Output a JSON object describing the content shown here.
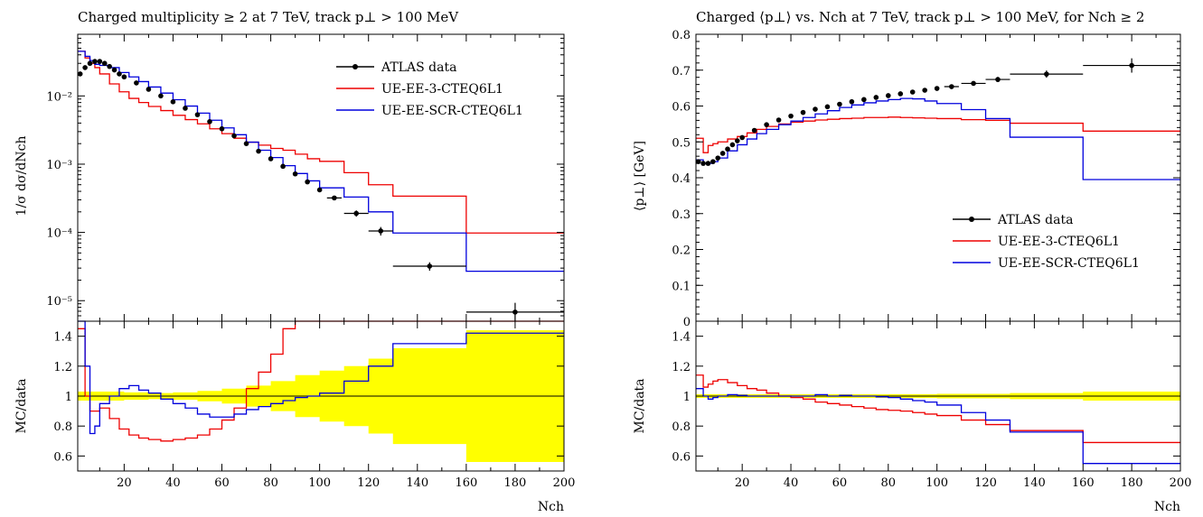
{
  "chart_data": [
    {
      "type": "line",
      "title": "Charged multiplicity ≥ 2 at 7 TeV, track p⊥ > 100 MeV",
      "xlabel": "Nch",
      "ylabel": "1/σ dσ/dNch",
      "ratio_ylabel": "MC/data",
      "xlim": [
        1,
        200
      ],
      "ylim": [
        5e-06,
        0.08
      ],
      "yscale": "log",
      "ratio_ylim": [
        0.5,
        1.5
      ],
      "x_ticks": [
        20,
        40,
        60,
        80,
        100,
        120,
        140,
        160,
        180,
        200
      ],
      "y_ticks": [
        1e-05,
        0.0001,
        0.001,
        0.01
      ],
      "y_tick_labels": [
        "10⁻⁵",
        "10⁻⁴",
        "10⁻³",
        "10⁻²"
      ],
      "ratio_ticks": [
        0.6,
        0.8,
        1,
        1.2,
        1.4
      ],
      "ratio_tick_labels": [
        "0.6",
        "0.8",
        "1",
        "1.2",
        "1.4"
      ],
      "legend_position": "top-right",
      "series": [
        {
          "name": "ATLAS data",
          "color": "#000000",
          "style": "points",
          "x": [
            2,
            4,
            6,
            8,
            10,
            12,
            14,
            16,
            18,
            20,
            25,
            30,
            35,
            40,
            45,
            50,
            55,
            60,
            65,
            70,
            75,
            80,
            85,
            90,
            95,
            100,
            106,
            115,
            125,
            145,
            180
          ],
          "y": [
            0.021,
            0.026,
            0.03,
            0.032,
            0.032,
            0.03,
            0.027,
            0.024,
            0.021,
            0.019,
            0.0155,
            0.0125,
            0.01,
            0.0082,
            0.0066,
            0.0053,
            0.0042,
            0.0033,
            0.0026,
            0.002,
            0.00155,
            0.0012,
            0.00093,
            0.00072,
            0.00055,
            0.00042,
            0.00032,
            0.00019,
            0.000105,
            3.2e-05,
            6.8e-06
          ],
          "yerr": [
            0,
            0,
            0,
            0,
            0,
            0,
            0,
            0,
            0,
            0,
            0,
            0,
            0,
            0,
            0,
            0,
            0,
            0,
            0,
            0,
            0,
            0,
            0,
            0,
            0,
            0,
            2e-05,
            2e-05,
            1.5e-05,
            4.5e-06,
            2.5e-06
          ],
          "xerr": [
            0,
            0,
            0,
            0,
            0,
            0,
            0,
            0,
            0,
            0,
            0,
            0,
            0,
            0,
            0,
            0,
            0,
            0,
            0,
            0,
            0,
            0,
            0,
            0,
            0,
            0,
            3,
            5,
            5,
            15,
            20
          ]
        },
        {
          "name": "UE-EE-3-CTEQ6L1",
          "color": "#ee0000",
          "style": "step",
          "x": [
            2,
            4,
            6,
            8,
            10,
            14,
            18,
            22,
            26,
            30,
            35,
            40,
            45,
            50,
            55,
            60,
            65,
            70,
            75,
            80,
            85,
            90,
            95,
            100,
            110,
            120,
            130,
            160,
            200
          ],
          "y": [
            0.045,
            0.036,
            0.03,
            0.026,
            0.021,
            0.015,
            0.0115,
            0.0092,
            0.008,
            0.007,
            0.0061,
            0.0052,
            0.0045,
            0.0039,
            0.0033,
            0.0028,
            0.0024,
            0.0021,
            0.0019,
            0.0017,
            0.0016,
            0.0014,
            0.0012,
            0.0011,
            0.00075,
            0.0005,
            0.00034,
            9.8e-05,
            9.8e-05
          ],
          "ratio": [
            1.45,
            1.0,
            0.9,
            0.9,
            0.92,
            0.85,
            0.78,
            0.74,
            0.72,
            0.71,
            0.7,
            0.71,
            0.72,
            0.74,
            0.78,
            0.84,
            0.92,
            1.05,
            1.16,
            1.28,
            1.45,
            1.5,
            1.5,
            1.5,
            1.5,
            1.5,
            1.5,
            1.5,
            1.5
          ]
        },
        {
          "name": "UE-EE-SCR-CTEQ6L1",
          "color": "#0000dd",
          "style": "step",
          "x": [
            2,
            4,
            6,
            8,
            10,
            14,
            18,
            22,
            26,
            30,
            35,
            40,
            45,
            50,
            55,
            60,
            65,
            70,
            75,
            80,
            85,
            90,
            95,
            100,
            110,
            120,
            130,
            160,
            200
          ],
          "y": [
            0.045,
            0.038,
            0.033,
            0.029,
            0.028,
            0.026,
            0.022,
            0.019,
            0.0162,
            0.0135,
            0.011,
            0.0088,
            0.0071,
            0.0056,
            0.0044,
            0.0034,
            0.0027,
            0.0021,
            0.0016,
            0.00125,
            0.00095,
            0.00073,
            0.00057,
            0.00045,
            0.00033,
            0.0002,
            9.8e-05,
            2.7e-05,
            2.7e-05
          ],
          "ratio": [
            1.5,
            1.2,
            0.75,
            0.8,
            0.95,
            1.0,
            1.05,
            1.07,
            1.04,
            1.02,
            0.98,
            0.95,
            0.92,
            0.88,
            0.86,
            0.86,
            0.88,
            0.91,
            0.93,
            0.95,
            0.97,
            0.99,
            1.0,
            1.02,
            1.1,
            1.2,
            1.35,
            1.42,
            1.42
          ]
        }
      ],
      "ratio_band": {
        "color": "#ffff00",
        "x": [
          1,
          10,
          20,
          30,
          40,
          50,
          60,
          70,
          80,
          90,
          100,
          110,
          120,
          130,
          160,
          200
        ],
        "halfwidth": [
          0.03,
          0.03,
          0.025,
          0.02,
          0.025,
          0.035,
          0.05,
          0.07,
          0.1,
          0.14,
          0.17,
          0.2,
          0.25,
          0.32,
          0.44,
          0.44
        ]
      }
    },
    {
      "type": "line",
      "title": "Charged ⟨p⊥⟩ vs. Nch at 7 TeV, track p⊥ > 100 MeV, for Nch ≥ 2",
      "xlabel": "Nch",
      "ylabel": "⟨p⊥⟩ [GeV]",
      "ratio_ylabel": "MC/data",
      "xlim": [
        1,
        200
      ],
      "ylim": [
        0,
        0.8
      ],
      "yscale": "linear",
      "ratio_ylim": [
        0.5,
        1.5
      ],
      "x_ticks": [
        20,
        40,
        60,
        80,
        100,
        120,
        140,
        160,
        180,
        200
      ],
      "y_ticks": [
        0,
        0.1,
        0.2,
        0.3,
        0.4,
        0.5,
        0.6,
        0.7,
        0.8
      ],
      "y_tick_labels": [
        "0",
        "0.1",
        "0.2",
        "0.3",
        "0.4",
        "0.5",
        "0.6",
        "0.7",
        "0.8"
      ],
      "ratio_ticks": [
        0.6,
        0.8,
        1,
        1.2,
        1.4
      ],
      "ratio_tick_labels": [
        "0.6",
        "0.8",
        "1",
        "1.2",
        "1.4"
      ],
      "legend_position": "center-right",
      "series": [
        {
          "name": "ATLAS data",
          "color": "#000000",
          "style": "points",
          "x": [
            2,
            4,
            6,
            8,
            10,
            12,
            14,
            16,
            18,
            20,
            25,
            30,
            35,
            40,
            45,
            50,
            55,
            60,
            65,
            70,
            75,
            80,
            85,
            90,
            95,
            100,
            106,
            115,
            125,
            145,
            180
          ],
          "y": [
            0.445,
            0.44,
            0.44,
            0.445,
            0.455,
            0.468,
            0.48,
            0.492,
            0.503,
            0.512,
            0.532,
            0.548,
            0.561,
            0.572,
            0.582,
            0.591,
            0.598,
            0.605,
            0.612,
            0.618,
            0.624,
            0.629,
            0.634,
            0.639,
            0.644,
            0.649,
            0.654,
            0.663,
            0.674,
            0.689,
            0.713
          ],
          "yerr": [
            0,
            0,
            0,
            0,
            0,
            0,
            0,
            0,
            0,
            0,
            0,
            0,
            0,
            0,
            0,
            0,
            0,
            0,
            0,
            0,
            0,
            0,
            0,
            0,
            0,
            0,
            0.005,
            0.006,
            0.007,
            0.01,
            0.02
          ],
          "xerr": [
            0,
            0,
            0,
            0,
            0,
            0,
            0,
            0,
            0,
            0,
            0,
            0,
            0,
            0,
            0,
            0,
            0,
            0,
            0,
            0,
            0,
            0,
            0,
            0,
            0,
            0,
            3,
            5,
            5,
            15,
            20
          ]
        },
        {
          "name": "UE-EE-3-CTEQ6L1",
          "color": "#ee0000",
          "style": "step",
          "x": [
            2,
            4,
            6,
            8,
            10,
            14,
            18,
            22,
            26,
            30,
            35,
            40,
            45,
            50,
            55,
            60,
            65,
            70,
            75,
            80,
            85,
            90,
            95,
            100,
            110,
            120,
            130,
            160,
            200
          ],
          "y": [
            0.51,
            0.47,
            0.49,
            0.495,
            0.5,
            0.508,
            0.515,
            0.525,
            0.535,
            0.543,
            0.55,
            0.555,
            0.558,
            0.561,
            0.563,
            0.565,
            0.566,
            0.568,
            0.568,
            0.569,
            0.568,
            0.567,
            0.566,
            0.565,
            0.562,
            0.56,
            0.552,
            0.53,
            0.495
          ],
          "ratio": [
            1.14,
            1.06,
            1.08,
            1.1,
            1.11,
            1.09,
            1.07,
            1.05,
            1.04,
            1.02,
            1.0,
            0.99,
            0.98,
            0.96,
            0.95,
            0.94,
            0.93,
            0.92,
            0.91,
            0.905,
            0.9,
            0.89,
            0.88,
            0.87,
            0.84,
            0.81,
            0.77,
            0.69,
            0.69
          ]
        },
        {
          "name": "UE-EE-SCR-CTEQ6L1",
          "color": "#0000dd",
          "style": "step",
          "x": [
            2,
            4,
            6,
            8,
            10,
            14,
            18,
            22,
            26,
            30,
            35,
            40,
            45,
            50,
            55,
            60,
            65,
            70,
            75,
            80,
            85,
            90,
            95,
            100,
            110,
            120,
            130,
            160,
            200
          ],
          "y": [
            0.45,
            0.44,
            0.44,
            0.445,
            0.455,
            0.475,
            0.492,
            0.508,
            0.523,
            0.535,
            0.548,
            0.558,
            0.568,
            0.578,
            0.587,
            0.596,
            0.603,
            0.609,
            0.614,
            0.618,
            0.621,
            0.62,
            0.614,
            0.607,
            0.59,
            0.565,
            0.513,
            0.395,
            0.395
          ],
          "ratio": [
            1.05,
            1.0,
            0.98,
            0.99,
            1.0,
            1.01,
            1.005,
            1.0,
            1.0,
            1.0,
            1.0,
            1.0,
            1.0,
            1.01,
            1.0,
            1.005,
            1.0,
            1.0,
            0.995,
            0.99,
            0.98,
            0.97,
            0.96,
            0.94,
            0.89,
            0.84,
            0.76,
            0.55,
            0.55
          ]
        }
      ],
      "ratio_band": {
        "color": "#ffff00",
        "x": [
          1,
          10,
          20,
          40,
          60,
          80,
          100,
          130,
          160,
          200
        ],
        "halfwidth": [
          0.012,
          0.012,
          0.012,
          0.012,
          0.012,
          0.013,
          0.015,
          0.02,
          0.03,
          0.03
        ]
      }
    }
  ]
}
